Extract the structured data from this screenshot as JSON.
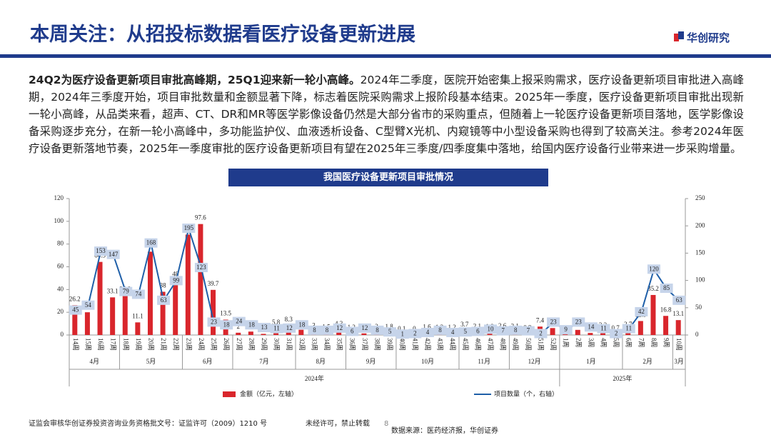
{
  "header": {
    "title": "本周关注：从招投标数据看医疗设备更新进展",
    "brand": "华创研究"
  },
  "paragraph": {
    "lead": "24Q2为医疗设备更新项目审批高峰期，25Q1迎来新一轮小高峰。",
    "body": "2024年二季度，医院开始密集上报采购需求，医疗设备更新项目审批进入高峰期，2024年三季度开始，项目审批数量和金额显著下降，标志着医院采购需求上报阶段基本结束。2025年一季度，医疗设备更新项目审批出现新一轮小高峰，从品类来看，超声、CT、DR和MR等医学影像设备仍然是大部分省市的采购重点，但随着上一轮医疗设备更新项目落地，医学影像设备采购逐步充分，在新一轮小高峰中，多功能监护仪、血液透析设备、C型臂X光机、内窥镜等中小型设备采购也得到了较高关注。参考2024年医疗设备更新落地节奏，2025年一季度审批的医疗设备更新项目有望在2025年三季度/四季度集中落地，给国内医疗设备行业带来进一步采购增量。"
  },
  "chart_data": {
    "type": "bar",
    "title": "我国医疗设备更新项目审批情况",
    "categories": [
      "14周",
      "15周",
      "16周",
      "17周",
      "18周",
      "19周",
      "20周",
      "21周",
      "22周",
      "23周",
      "24周",
      "25周",
      "26周",
      "27周",
      "28周",
      "29周",
      "30周",
      "31周",
      "32周",
      "33周",
      "34周",
      "35周",
      "36周",
      "37周",
      "38周",
      "39周",
      "40周",
      "41周",
      "42周",
      "43周",
      "44周",
      "45周",
      "46周",
      "47周",
      "48周",
      "49周",
      "50周",
      "51周",
      "52周",
      "1周",
      "2周",
      "3周",
      "4周",
      "5周",
      "6周",
      "7周",
      "8周",
      "9周",
      "10周"
    ],
    "months": [
      {
        "label": "4月",
        "weeks": 4
      },
      {
        "label": "5月",
        "weeks": 5
      },
      {
        "label": "6月",
        "weeks": 4
      },
      {
        "label": "7月",
        "weeks": 5
      },
      {
        "label": "8月",
        "weeks": 4
      },
      {
        "label": "9月",
        "weeks": 4
      },
      {
        "label": "10月",
        "weeks": 5
      },
      {
        "label": "11月",
        "weeks": 4
      },
      {
        "label": "12月",
        "weeks": 4
      },
      {
        "label": "1月",
        "weeks": 5
      },
      {
        "label": "2月",
        "weeks": 4
      },
      {
        "label": "3月",
        "weeks": 1
      }
    ],
    "years": [
      {
        "label": "2024年",
        "months": 9
      },
      {
        "label": "2025年",
        "months": 3
      }
    ],
    "series": [
      {
        "name": "金额（亿元，左轴）",
        "type": "bar",
        "color": "#d9262c",
        "axis": "y",
        "values": [
          26.2,
          20,
          64.3,
          33.1,
          34.8,
          11.1,
          73.3,
          38,
          48,
          88.3,
          97.6,
          39.7,
          13.5,
          2,
          3,
          1,
          5.8,
          8.3,
          4.6,
          3,
          1.5,
          4.3,
          1.2,
          1.4,
          2,
          1.8,
          0.1,
          0,
          1.6,
          1.3,
          1.2,
          3.7,
          2.1,
          1.8,
          2.6,
          2.1,
          0.9,
          7.4,
          6.1,
          0.8,
          4.5,
          1.8,
          3.2,
          0.7,
          3.7,
          12.3,
          35.2,
          16.8,
          13.1
        ]
      },
      {
        "name": "项目数量（个，右轴）",
        "type": "line",
        "color": "#1f5fa8",
        "axis": "y2",
        "values": [
          45,
          54,
          153,
          147,
          79,
          74,
          168,
          63,
          99,
          195,
          123,
          23,
          18,
          24,
          18,
          13,
          11,
          12,
          18,
          8,
          8,
          12,
          6,
          12,
          8,
          5,
          1,
          2,
          4,
          8,
          4,
          5,
          6,
          10,
          7,
          8,
          7,
          2,
          23,
          9,
          23,
          14,
          11,
          2,
          11,
          42,
          120,
          85,
          63
        ]
      }
    ],
    "ylim": [
      0,
      120
    ],
    "yticks": [
      0,
      20,
      40,
      60,
      80,
      100,
      120
    ],
    "y2lim": [
      0,
      250
    ],
    "y2ticks": [
      0,
      50,
      100,
      150,
      200,
      250
    ]
  },
  "footer": {
    "license": "证监会审核华创证券投资咨询业务资格批文号：证监许可（2009）1210 号",
    "notice": "未经许可，禁止转载",
    "page": 8,
    "source": "数据来源：医药经济报，华创证券"
  }
}
